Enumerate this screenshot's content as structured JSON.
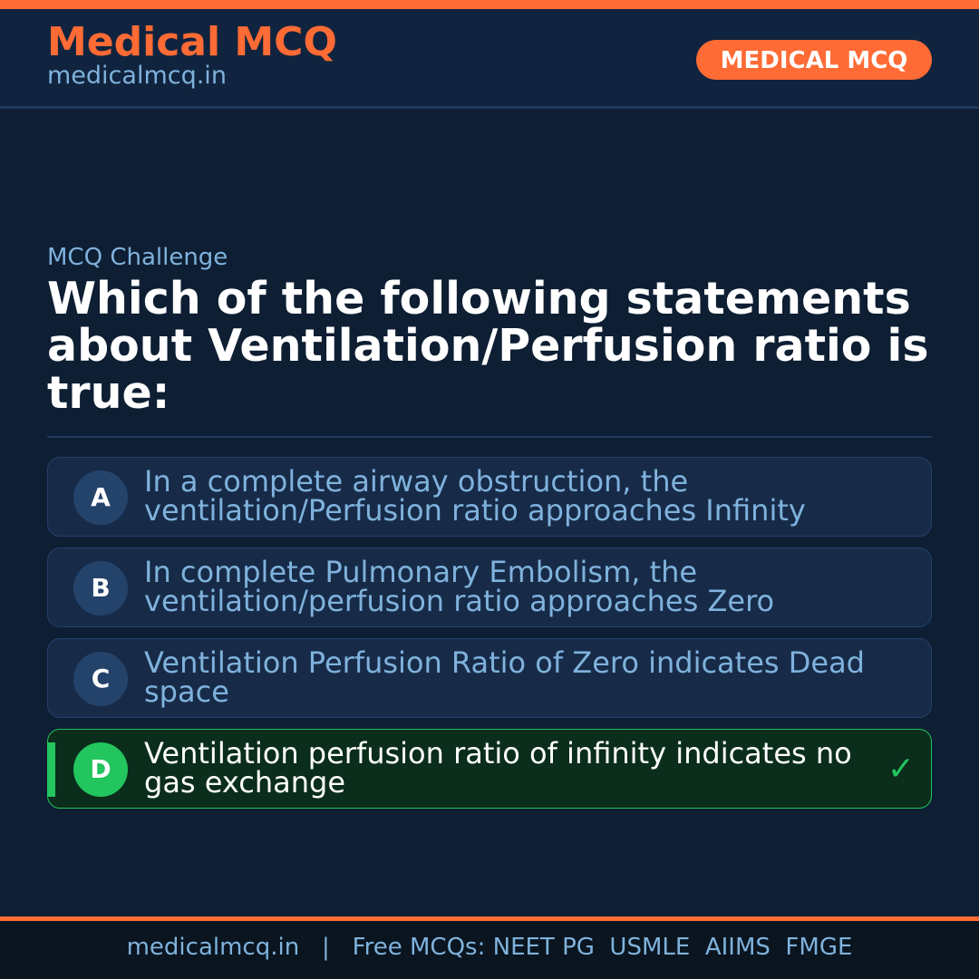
{
  "header": {
    "brand": "Medical MCQ",
    "site": "medicalmcq.in",
    "badge": "MEDICAL MCQ"
  },
  "kicker": "MCQ Challenge",
  "question": "Which of the following statements about Ventilation/Perfusion ratio is true:",
  "options": [
    {
      "letter": "A",
      "text": "In a complete airway obstruction, the ventilation/Perfusion ratio approaches Infinity",
      "correct": false
    },
    {
      "letter": "B",
      "text": "In complete Pulmonary Embolism, the ventilation/perfusion ratio approaches Zero",
      "correct": false
    },
    {
      "letter": "C",
      "text": "Ventilation Perfusion Ratio of Zero indicates Dead space",
      "correct": false
    },
    {
      "letter": "D",
      "text": "Ventilation perfusion ratio of infinity indicates no gas exchange",
      "correct": true,
      "icon": "checkmark-icon"
    }
  ],
  "footer": {
    "site": "medicalmcq.in",
    "separator": "|",
    "text": "Free MCQs: NEET PG  USMLE  AIIMS  FMGE"
  },
  "colors": {
    "accent": "#ff6b35",
    "correct": "#22c55e",
    "background": "#0e1e33"
  }
}
